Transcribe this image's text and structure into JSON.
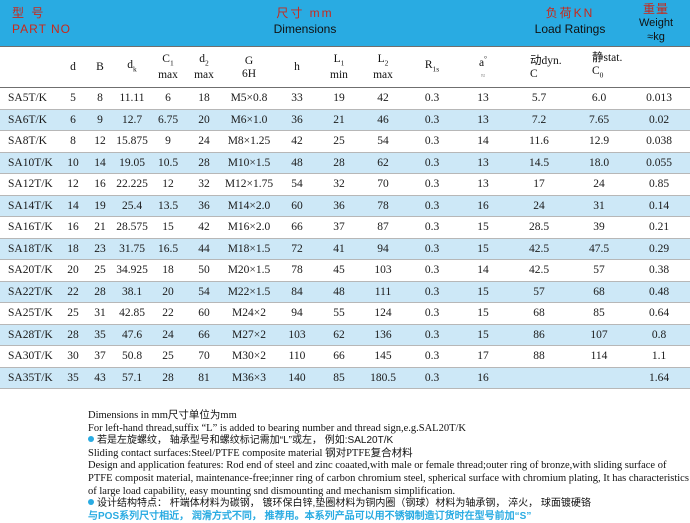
{
  "colors": {
    "band": "#29abe2",
    "alt_row": "#cde8f7",
    "red": "#c9281a",
    "blue_text": "#29abe2"
  },
  "header": {
    "part_label_cn": "型 号",
    "part_label_en": "PART NO",
    "dims_label_cn": "尺寸 mm",
    "dims_label_en": "Dimensions",
    "load_label_cn": "负荷KN",
    "load_label_en": "Load Ratings",
    "weight_label_cn": "重量",
    "weight_label_en": "Weight",
    "weight_label_unit": "≈kg"
  },
  "columns": [
    {
      "name": "d",
      "b": "d"
    },
    {
      "name": "B",
      "b": "B"
    },
    {
      "name": "dk",
      "b": "d",
      "sb": "k"
    },
    {
      "name": "C1-max",
      "b": "C",
      "sb": "1",
      "l2": "max"
    },
    {
      "name": "d2-max",
      "b": "d",
      "sb": "2",
      "l2": "max"
    },
    {
      "name": "G-6H",
      "b": "G",
      "l2": "6H"
    },
    {
      "name": "h",
      "b": "h"
    },
    {
      "name": "L1-min",
      "b": "L",
      "sb": "1",
      "l2": "min"
    },
    {
      "name": "L2-max",
      "b": "L",
      "sb": "2",
      "l2": "max"
    },
    {
      "name": "R1s",
      "b": "R",
      "sb": "1s"
    },
    {
      "name": "a-deg",
      "b": "a",
      "sp": "°",
      "l2": "≈",
      "l2cls": "approx"
    },
    {
      "name": "dyn-C",
      "b": "动dyn.",
      "l2": "C",
      "left": true
    },
    {
      "name": "stat-C0",
      "b": "静stat.",
      "l2": "C",
      "l2sb": "0",
      "left": true
    },
    {
      "name": "weight",
      "b": ""
    }
  ],
  "rows": [
    {
      "part": "SA5T/K",
      "values": [
        "5",
        "8",
        "11.11",
        "6",
        "18",
        "M5×0.8",
        "33",
        "19",
        "42",
        "0.3",
        "13",
        "5.7",
        "6.0",
        "0.013"
      ]
    },
    {
      "part": "SA6T/K",
      "values": [
        "6",
        "9",
        "12.7",
        "6.75",
        "20",
        "M6×1.0",
        "36",
        "21",
        "46",
        "0.3",
        "13",
        "7.2",
        "7.65",
        "0.02"
      ]
    },
    {
      "part": "SA8T/K",
      "values": [
        "8",
        "12",
        "15.875",
        "9",
        "24",
        "M8×1.25",
        "42",
        "25",
        "54",
        "0.3",
        "14",
        "11.6",
        "12.9",
        "0.038"
      ]
    },
    {
      "part": "SA10T/K",
      "values": [
        "10",
        "14",
        "19.05",
        "10.5",
        "28",
        "M10×1.5",
        "48",
        "28",
        "62",
        "0.3",
        "13",
        "14.5",
        "18.0",
        "0.055"
      ]
    },
    {
      "part": "SA12T/K",
      "values": [
        "12",
        "16",
        "22.225",
        "12",
        "32",
        "M12×1.75",
        "54",
        "32",
        "70",
        "0.3",
        "13",
        "17",
        "24",
        "0.85"
      ]
    },
    {
      "part": "SA14T/K",
      "values": [
        "14",
        "19",
        "25.4",
        "13.5",
        "36",
        "M14×2.0",
        "60",
        "36",
        "78",
        "0.3",
        "16",
        "24",
        "31",
        "0.14"
      ]
    },
    {
      "part": "SA16T/K",
      "values": [
        "16",
        "21",
        "28.575",
        "15",
        "42",
        "M16×2.0",
        "66",
        "37",
        "87",
        "0.3",
        "15",
        "28.5",
        "39",
        "0.21"
      ]
    },
    {
      "part": "SA18T/K",
      "values": [
        "18",
        "23",
        "31.75",
        "16.5",
        "44",
        "M18×1.5",
        "72",
        "41",
        "94",
        "0.3",
        "15",
        "42.5",
        "47.5",
        "0.29"
      ]
    },
    {
      "part": "SA20T/K",
      "values": [
        "20",
        "25",
        "34.925",
        "18",
        "50",
        "M20×1.5",
        "78",
        "45",
        "103",
        "0.3",
        "14",
        "42.5",
        "57",
        "0.38"
      ]
    },
    {
      "part": "SA22T/K",
      "values": [
        "22",
        "28",
        "38.1",
        "20",
        "54",
        "M22×1.5",
        "84",
        "48",
        "111",
        "0.3",
        "15",
        "57",
        "68",
        "0.48"
      ]
    },
    {
      "part": "SA25T/K",
      "values": [
        "25",
        "31",
        "42.85",
        "22",
        "60",
        "M24×2",
        "94",
        "55",
        "124",
        "0.3",
        "15",
        "68",
        "85",
        "0.64"
      ]
    },
    {
      "part": "SA28T/K",
      "values": [
        "28",
        "35",
        "47.6",
        "24",
        "66",
        "M27×2",
        "103",
        "62",
        "136",
        "0.3",
        "15",
        "86",
        "107",
        "0.8"
      ]
    },
    {
      "part": "SA30T/K",
      "values": [
        "30",
        "37",
        "50.8",
        "25",
        "70",
        "M30×2",
        "110",
        "66",
        "145",
        "0.3",
        "17",
        "88",
        "114",
        "1.1"
      ]
    },
    {
      "part": "SA35T/K",
      "values": [
        "35",
        "43",
        "57.1",
        "28",
        "81",
        "M36×3",
        "140",
        "85",
        "180.5",
        "0.3",
        "16",
        "",
        "",
        "1.64"
      ]
    }
  ],
  "footer": {
    "lines": [
      {
        "t": "Dimensions in mm尺寸单位为mm",
        "cls": "en",
        "bullet": false
      },
      {
        "t": "For left-hand thread,suffix “L” is added to bearing number and thread sign,e.g.SAL20T/K",
        "cls": "en",
        "bullet": false
      },
      {
        "t": "若是左旋螺纹， 轴承型号和螺纹标记需加“L”或左， 例如:SAL20T/K",
        "cls": "cn",
        "bullet": true
      },
      {
        "t": "Sliding contact surfaces:Steel/PTFE composite material 钢对PTFE复合材料",
        "cls": "en",
        "bullet": false
      },
      {
        "t": "Design and application features: Rod end of steel and zinc coaated,with male or female thread;outer ring of bronze,with sliding surface of",
        "cls": "en",
        "bullet": false
      },
      {
        "t": "PTFE composit material, maintenance-free;inner ring of carbon chromium steel, spherical surface with chromium plating, It has characteristics",
        "cls": "en",
        "bullet": false
      },
      {
        "t": "of large load capability, easy mounting snd dismounting and  mechanism simplification.",
        "cls": "en",
        "bullet": false
      },
      {
        "t": "设计结构特点： 杆端体材料为碳钢， 镀环保白锌,垫圈材料为铜内圈（钢球）材料为轴承钢， 淬火， 球面镀硬铬",
        "cls": "cn",
        "bullet": true
      },
      {
        "t": "与POS系列尺寸相近， 润滑方式不同， 推荐用。本系列产品可以用不锈钢制造订货时在型号前加“S”",
        "cls": "cnblue",
        "bullet": false
      }
    ]
  }
}
